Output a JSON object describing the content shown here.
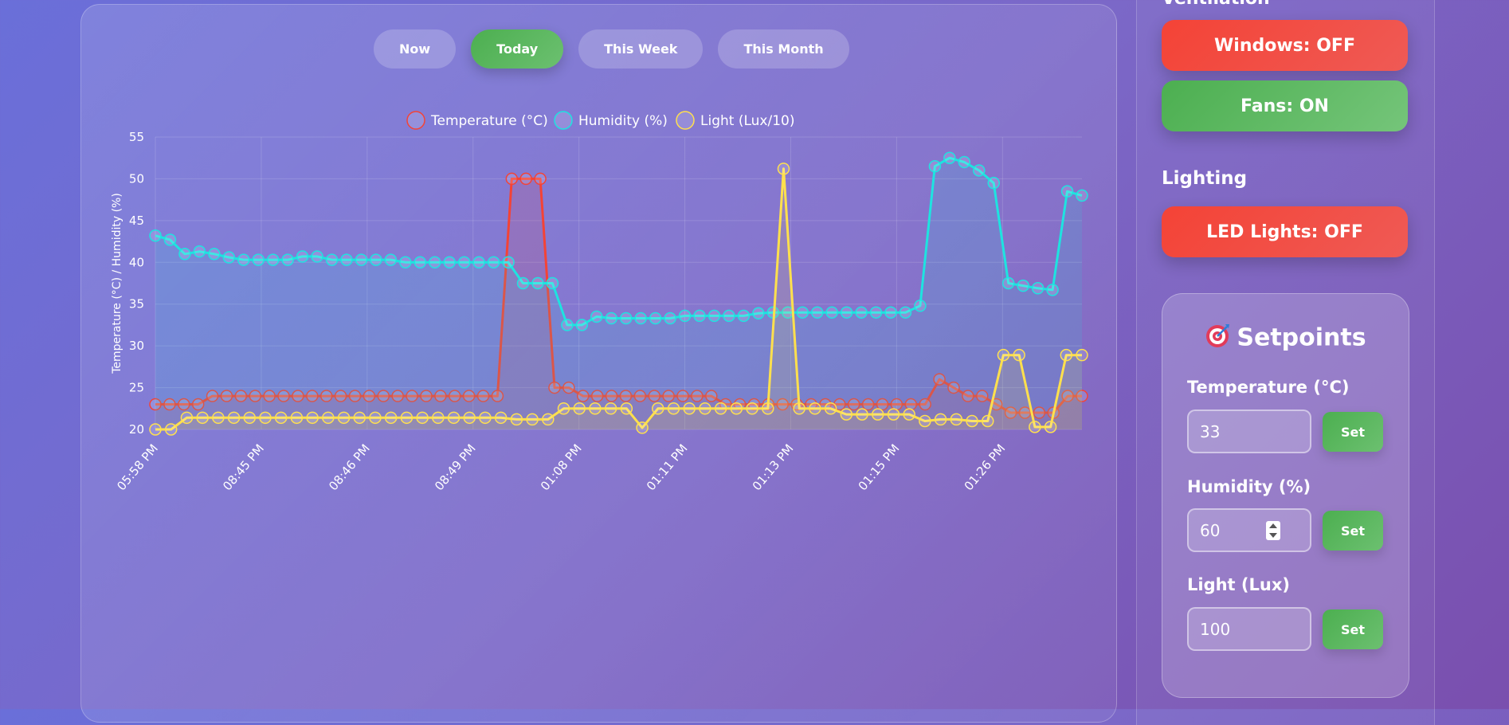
{
  "range_buttons": [
    {
      "label": "Now",
      "active": false
    },
    {
      "label": "Today",
      "active": true
    },
    {
      "label": "This Week",
      "active": false
    },
    {
      "label": "This Month",
      "active": false
    }
  ],
  "chart_data": {
    "type": "line",
    "ylabel": "Temperature (°C) / Humidity (%)",
    "ylim": [
      20,
      55
    ],
    "y_ticks": [
      20,
      25,
      30,
      35,
      40,
      45,
      50,
      55
    ],
    "x_tick_labels": [
      "05:58 PM",
      "08:45 PM",
      "08:46 PM",
      "08:49 PM",
      "01:08 PM",
      "01:11 PM",
      "01:13 PM",
      "01:15 PM",
      "01:26 PM"
    ],
    "grid": true,
    "legend_position": "top",
    "series": [
      {
        "name": "Temperature (°C)",
        "color": "#f44336",
        "fill": "rgba(244,67,54,0.12)",
        "values": [
          23,
          23,
          23,
          23,
          24,
          24,
          24,
          24,
          24,
          24,
          24,
          24,
          24,
          24,
          24,
          24,
          24,
          24,
          24,
          24,
          24,
          24,
          24,
          24,
          24,
          50,
          50,
          50,
          25,
          25,
          24,
          24,
          24,
          24,
          24,
          24,
          24,
          24,
          24,
          24,
          23,
          23,
          23,
          23,
          23,
          23,
          23,
          23,
          23,
          23,
          23,
          23,
          23,
          23,
          23,
          26,
          25,
          24,
          24,
          23,
          22,
          22,
          22,
          22,
          24,
          24
        ]
      },
      {
        "name": "Humidity (%)",
        "color": "#1ee3e0",
        "fill": "rgba(30,227,224,0.12)",
        "values": [
          43.2,
          42.7,
          41,
          41.3,
          41,
          40.6,
          40.3,
          40.3,
          40.3,
          40.3,
          40.7,
          40.7,
          40.3,
          40.3,
          40.3,
          40.3,
          40.3,
          40,
          40,
          40,
          40,
          40,
          40,
          40,
          40,
          37.5,
          37.5,
          37.5,
          32.5,
          32.5,
          33.5,
          33.3,
          33.3,
          33.3,
          33.3,
          33.3,
          33.6,
          33.6,
          33.6,
          33.6,
          33.6,
          33.9,
          34,
          34,
          34,
          34,
          34,
          34,
          34,
          34,
          34,
          34,
          34.8,
          51.5,
          52.5,
          52,
          51,
          49.5,
          37.5,
          37.2,
          36.9,
          36.7,
          48.5,
          48
        ]
      },
      {
        "name": "Light (Lux/10)",
        "color": "#ffe04d",
        "fill": "rgba(255,224,77,0.12)",
        "values": [
          20,
          20,
          21.4,
          21.4,
          21.4,
          21.4,
          21.4,
          21.4,
          21.4,
          21.4,
          21.4,
          21.4,
          21.4,
          21.4,
          21.4,
          21.4,
          21.4,
          21.4,
          21.4,
          21.4,
          21.4,
          21.4,
          21.4,
          21.2,
          21.2,
          21.2,
          22.5,
          22.5,
          22.5,
          22.5,
          22.5,
          20.2,
          22.5,
          22.5,
          22.5,
          22.5,
          22.5,
          22.5,
          22.5,
          22.5,
          51.2,
          22.5,
          22.5,
          22.5,
          21.8,
          21.8,
          21.8,
          21.8,
          21.8,
          21,
          21.2,
          21.2,
          21,
          21,
          28.9,
          28.9,
          20.3,
          20.3,
          28.9,
          28.9
        ]
      }
    ]
  },
  "side": {
    "cut_heading": "Ventilation",
    "windows_label": "Windows: OFF",
    "fans_label": "Fans: ON",
    "lighting_heading": "Lighting",
    "led_label": "LED Lights: OFF"
  },
  "setpoints": {
    "title": "Setpoints",
    "title_icon": "target-icon",
    "temperature": {
      "label": "Temperature (°C)",
      "value": "33",
      "set_label": "Set"
    },
    "humidity": {
      "label": "Humidity (%)",
      "value": "60",
      "set_label": "Set"
    },
    "light": {
      "label": "Light (Lux)",
      "value": "100",
      "set_label": "Set"
    }
  }
}
